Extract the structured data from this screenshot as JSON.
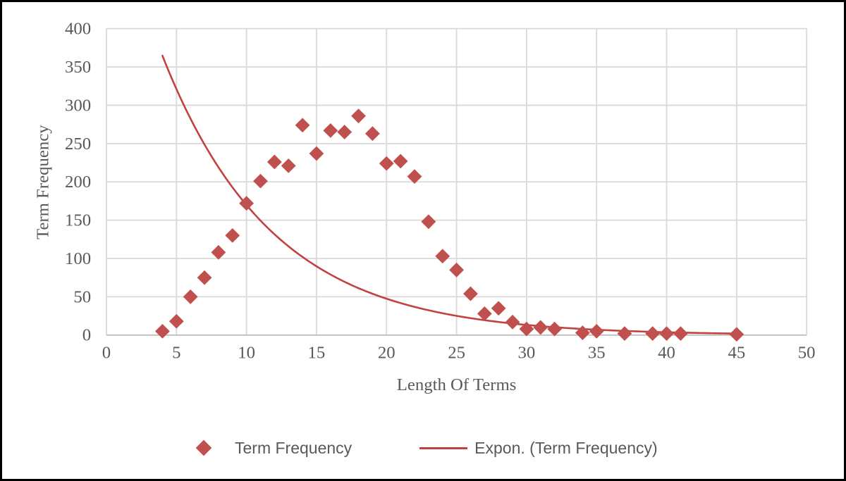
{
  "chart_data": {
    "type": "scatter",
    "title": "",
    "xlabel": "Length Of Terms",
    "ylabel": "Term Frequency",
    "xlim": [
      0,
      50
    ],
    "ylim": [
      0,
      400
    ],
    "x_ticks": [
      0,
      5,
      10,
      15,
      20,
      25,
      30,
      35,
      40,
      45,
      50
    ],
    "y_ticks": [
      0,
      50,
      100,
      150,
      200,
      250,
      300,
      350,
      400
    ],
    "grid": true,
    "legend_position": "bottom",
    "series": [
      {
        "name": "Term Frequency",
        "kind": "scatter",
        "marker": "diamond",
        "color": "#C0504D",
        "points": [
          [
            4,
            5
          ],
          [
            5,
            18
          ],
          [
            6,
            50
          ],
          [
            7,
            75
          ],
          [
            8,
            108
          ],
          [
            9,
            130
          ],
          [
            10,
            172
          ],
          [
            11,
            201
          ],
          [
            12,
            226
          ],
          [
            13,
            221
          ],
          [
            14,
            274
          ],
          [
            15,
            237
          ],
          [
            16,
            267
          ],
          [
            17,
            265
          ],
          [
            18,
            286
          ],
          [
            19,
            263
          ],
          [
            20,
            224
          ],
          [
            21,
            227
          ],
          [
            22,
            207
          ],
          [
            23,
            148
          ],
          [
            24,
            103
          ],
          [
            25,
            85
          ],
          [
            26,
            54
          ],
          [
            27,
            28
          ],
          [
            28,
            35
          ],
          [
            29,
            17
          ],
          [
            30,
            8
          ],
          [
            31,
            10
          ],
          [
            32,
            8
          ],
          [
            34,
            3
          ],
          [
            35,
            5
          ],
          [
            37,
            2
          ],
          [
            39,
            2
          ],
          [
            40,
            2
          ],
          [
            41,
            2
          ],
          [
            45,
            1
          ]
        ]
      },
      {
        "name": "Expon. (Term Frequency)",
        "kind": "exponential-trendline",
        "color": "#C2413E",
        "equation": {
          "a": 607,
          "b": 0.1274
        },
        "x_range": [
          4,
          45
        ]
      }
    ],
    "legend": {
      "entries": [
        "Term Frequency",
        "Expon. (Term Frequency)"
      ]
    },
    "colors": {
      "marker": "#C0504D",
      "trendline": "#C2413E",
      "gridline": "#D9D9D9",
      "axis_line": "#BFBFBF",
      "text": "#595959",
      "frame_border": "#000000",
      "background": "#FFFFFF"
    }
  }
}
